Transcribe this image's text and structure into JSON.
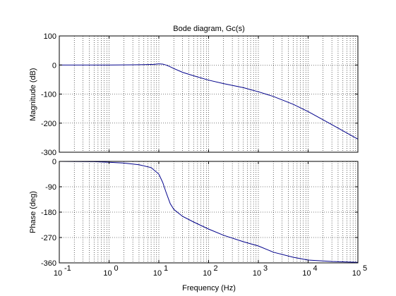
{
  "chart_data": [
    {
      "type": "line",
      "title": "Bode diagram, Gc(s)",
      "ylabel": "Magnitude (dB)",
      "xlabel": "",
      "x_scale": "log",
      "xlim": [
        0.1,
        100000
      ],
      "ylim": [
        -300,
        100
      ],
      "grid": true,
      "yticks": [
        100,
        0,
        -100,
        -200,
        -300
      ],
      "series": [
        {
          "color": "#00008b",
          "x": [
            0.1,
            0.3,
            1,
            3,
            5,
            8,
            10,
            12,
            14,
            16,
            20,
            30,
            50,
            100,
            200,
            500,
            1000,
            2000,
            5000,
            10000,
            30000,
            100000
          ],
          "y": [
            0,
            0,
            0,
            0.5,
            1,
            2,
            4,
            3,
            0,
            -4,
            -12,
            -25,
            -37,
            -52,
            -64,
            -78,
            -92,
            -108,
            -135,
            -160,
            -205,
            -255
          ]
        }
      ]
    },
    {
      "type": "line",
      "title": "",
      "ylabel": "Phase (deg)",
      "xlabel": "Frequency  (Hz)",
      "x_scale": "log",
      "xlim": [
        0.1,
        100000
      ],
      "ylim": [
        -360,
        0
      ],
      "grid": true,
      "yticks": [
        0,
        -90,
        -180,
        -270,
        -360
      ],
      "xtick_bases": [
        "10",
        "10",
        "10",
        "10",
        "10",
        "10",
        "10"
      ],
      "xtick_exps": [
        "-1",
        "0",
        "1",
        "2",
        "3",
        "4",
        "5"
      ],
      "series": [
        {
          "color": "#00008b",
          "x": [
            0.1,
            0.5,
            1,
            2,
            4,
            7,
            10,
            12,
            14,
            17,
            20,
            30,
            50,
            100,
            200,
            500,
            1000,
            2000,
            5000,
            10000,
            30000,
            100000
          ],
          "y": [
            0,
            -1,
            -3,
            -6,
            -12,
            -22,
            -45,
            -75,
            -110,
            -150,
            -170,
            -195,
            -215,
            -240,
            -262,
            -285,
            -300,
            -322,
            -340,
            -350,
            -355,
            -358
          ]
        }
      ]
    }
  ]
}
